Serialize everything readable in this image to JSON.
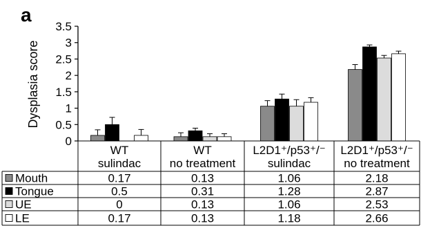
{
  "panel_label": "a",
  "chart_data": {
    "type": "bar",
    "title": "",
    "xlabel": "",
    "ylabel": "Dysplasia score",
    "ylim": [
      0,
      3.5
    ],
    "yticks": [
      "3.5",
      "3",
      "2.5",
      "2",
      "1.5",
      "1",
      "0.5",
      "0"
    ],
    "categories": [
      [
        "WT",
        "sulindac"
      ],
      [
        "WT",
        "no treatment"
      ],
      [
        "L2D1⁺/p53⁺/⁻",
        "sulindac"
      ],
      [
        "L2D1⁺/p53⁺/⁻",
        "no treatment"
      ]
    ],
    "series": [
      {
        "name": "Mouth",
        "color": "#8a8a8a",
        "values": [
          0.17,
          0.13,
          1.06,
          2.18
        ],
        "errors": [
          0.17,
          0.12,
          0.17,
          0.15
        ],
        "labels": [
          "0.17",
          "0.13",
          "1.06",
          "2.18"
        ]
      },
      {
        "name": "Tongue",
        "color": "#000000",
        "values": [
          0.5,
          0.31,
          1.28,
          2.87
        ],
        "errors": [
          0.22,
          0.08,
          0.15,
          0.06
        ],
        "labels": [
          "0.5",
          "0.31",
          "1.28",
          "2.87"
        ]
      },
      {
        "name": "UE",
        "color": "#dcdcdc",
        "values": [
          0,
          0.13,
          1.06,
          2.53
        ],
        "errors": [
          0,
          0.09,
          0.2,
          0.08
        ],
        "labels": [
          "0",
          "0.13",
          "1.06",
          "2.53"
        ]
      },
      {
        "name": "LE",
        "color": "#ffffff",
        "values": [
          0.17,
          0.13,
          1.18,
          2.66
        ],
        "errors": [
          0.18,
          0.09,
          0.14,
          0.08
        ],
        "labels": [
          "0.17",
          "0.13",
          "1.18",
          "2.66"
        ]
      }
    ],
    "grid": false,
    "legend": "table-rows"
  }
}
